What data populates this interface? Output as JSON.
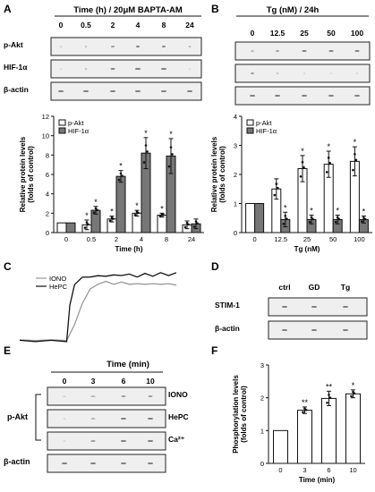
{
  "panel_labels": [
    "A",
    "B",
    "C",
    "D",
    "E",
    "F"
  ],
  "colors": {
    "white_bar": "#ffffff",
    "gray_bar": "#777777",
    "ink": "#111111"
  },
  "panelA": {
    "header": "Time (h) / 20μM BAPTA-AM",
    "lanes": [
      "0",
      "0.5",
      "2",
      "4",
      "8",
      "24"
    ],
    "blot_labels": [
      "p-Akt",
      "HIF-1α",
      "β-actin"
    ]
  },
  "panelB": {
    "header": "Tg (nM) / 24h",
    "lanes": [
      "0",
      "12.5",
      "25",
      "50",
      "100"
    ],
    "blot_labels": [
      "p-Akt",
      "HIF-1α",
      "β-actin"
    ]
  },
  "panelC": {
    "legend": [
      "IONO",
      "HePC"
    ]
  },
  "panelD": {
    "lanes": [
      "ctrl",
      "GD",
      "Tg"
    ],
    "blot_labels": [
      "STIM-1",
      "β-actin"
    ]
  },
  "panelE": {
    "header": "Time (min)",
    "lanes": [
      "0",
      "3",
      "6",
      "10"
    ],
    "left_label": "p-Akt",
    "right_labels": [
      "IONO",
      "HePC",
      "Ca²⁺"
    ],
    "bottom_label": "β-actin"
  },
  "chart_data": [
    {
      "panel": "A",
      "type": "bar",
      "categories": [
        "0",
        "0.5",
        "2",
        "4",
        "8",
        "24"
      ],
      "series": [
        {
          "name": "p-Akt",
          "values": [
            1.0,
            0.8,
            1.4,
            2.0,
            1.8,
            0.8
          ],
          "errors": [
            0,
            0.5,
            0.3,
            0.3,
            0.2,
            0.4
          ],
          "stars": [
            "",
            "*",
            "*",
            "*",
            "*",
            ""
          ]
        },
        {
          "name": "HIF-1α",
          "values": [
            1.0,
            2.3,
            5.8,
            8.2,
            7.9,
            0.9
          ],
          "errors": [
            0,
            0.4,
            0.6,
            1.6,
            1.8,
            0.5
          ],
          "stars": [
            "",
            "*",
            "*",
            "*",
            "*",
            ""
          ]
        }
      ],
      "xlabel": "Time (h)",
      "ylabel": "Relative protein levels\n(folds of control)",
      "ylim": [
        0,
        12
      ],
      "yticks": [
        0,
        2,
        4,
        6,
        8,
        10,
        12
      ]
    },
    {
      "panel": "B",
      "type": "bar",
      "categories": [
        "0",
        "12.5",
        "25",
        "50",
        "100"
      ],
      "series": [
        {
          "name": "p-Akt",
          "values": [
            1.0,
            1.5,
            2.2,
            2.35,
            2.45
          ],
          "errors": [
            0,
            0.35,
            0.45,
            0.45,
            0.5
          ],
          "stars": [
            "",
            "",
            "*",
            "*",
            "*"
          ]
        },
        {
          "name": "HIF-1α",
          "values": [
            1.0,
            0.45,
            0.45,
            0.45,
            0.45
          ],
          "errors": [
            0,
            0.25,
            0.15,
            0.15,
            0.12
          ],
          "stars": [
            "",
            "*",
            "*",
            "*",
            "*"
          ]
        }
      ],
      "xlabel": "Tg (nM)",
      "ylabel": "Relative protein levels\n(folds of control)",
      "ylim": [
        0,
        4
      ],
      "yticks": [
        0,
        1,
        2,
        3,
        4
      ]
    },
    {
      "panel": "C",
      "type": "line",
      "series": [
        {
          "name": "IONO",
          "x": [
            0,
            0.1,
            0.2,
            0.3,
            0.35,
            0.4,
            0.45,
            0.5,
            0.55,
            0.6,
            0.65,
            0.7,
            0.75,
            0.8,
            0.85,
            0.9,
            0.95,
            1.0
          ],
          "y": [
            0.05,
            0.06,
            0.05,
            0.06,
            0.25,
            0.55,
            0.72,
            0.8,
            0.82,
            0.8,
            0.81,
            0.8,
            0.79,
            0.8,
            0.79,
            0.8,
            0.79,
            0.79
          ]
        },
        {
          "name": "HePC",
          "x": [
            0,
            0.1,
            0.2,
            0.3,
            0.32,
            0.35,
            0.4,
            0.45,
            0.5,
            0.55,
            0.6,
            0.65,
            0.7,
            0.75,
            0.8,
            0.85,
            0.9,
            0.95,
            1.0
          ],
          "y": [
            0.04,
            0.05,
            0.04,
            0.05,
            0.5,
            0.8,
            0.87,
            0.9,
            0.89,
            0.91,
            0.9,
            0.92,
            0.91,
            0.9,
            0.92,
            0.91,
            0.93,
            0.92,
            0.93
          ]
        }
      ]
    },
    {
      "panel": "F",
      "type": "bar",
      "categories": [
        "0",
        "3",
        "6",
        "10"
      ],
      "values": [
        1.0,
        1.62,
        1.98,
        2.12
      ],
      "errors": [
        0,
        0.1,
        0.22,
        0.12
      ],
      "stars": [
        "",
        "**",
        "**",
        "*"
      ],
      "xlabel": "Time (min)",
      "ylabel": "Phosphorylation levels\n(folds of control)",
      "ylim": [
        0,
        3
      ],
      "yticks": [
        0,
        1,
        2,
        3
      ]
    }
  ]
}
